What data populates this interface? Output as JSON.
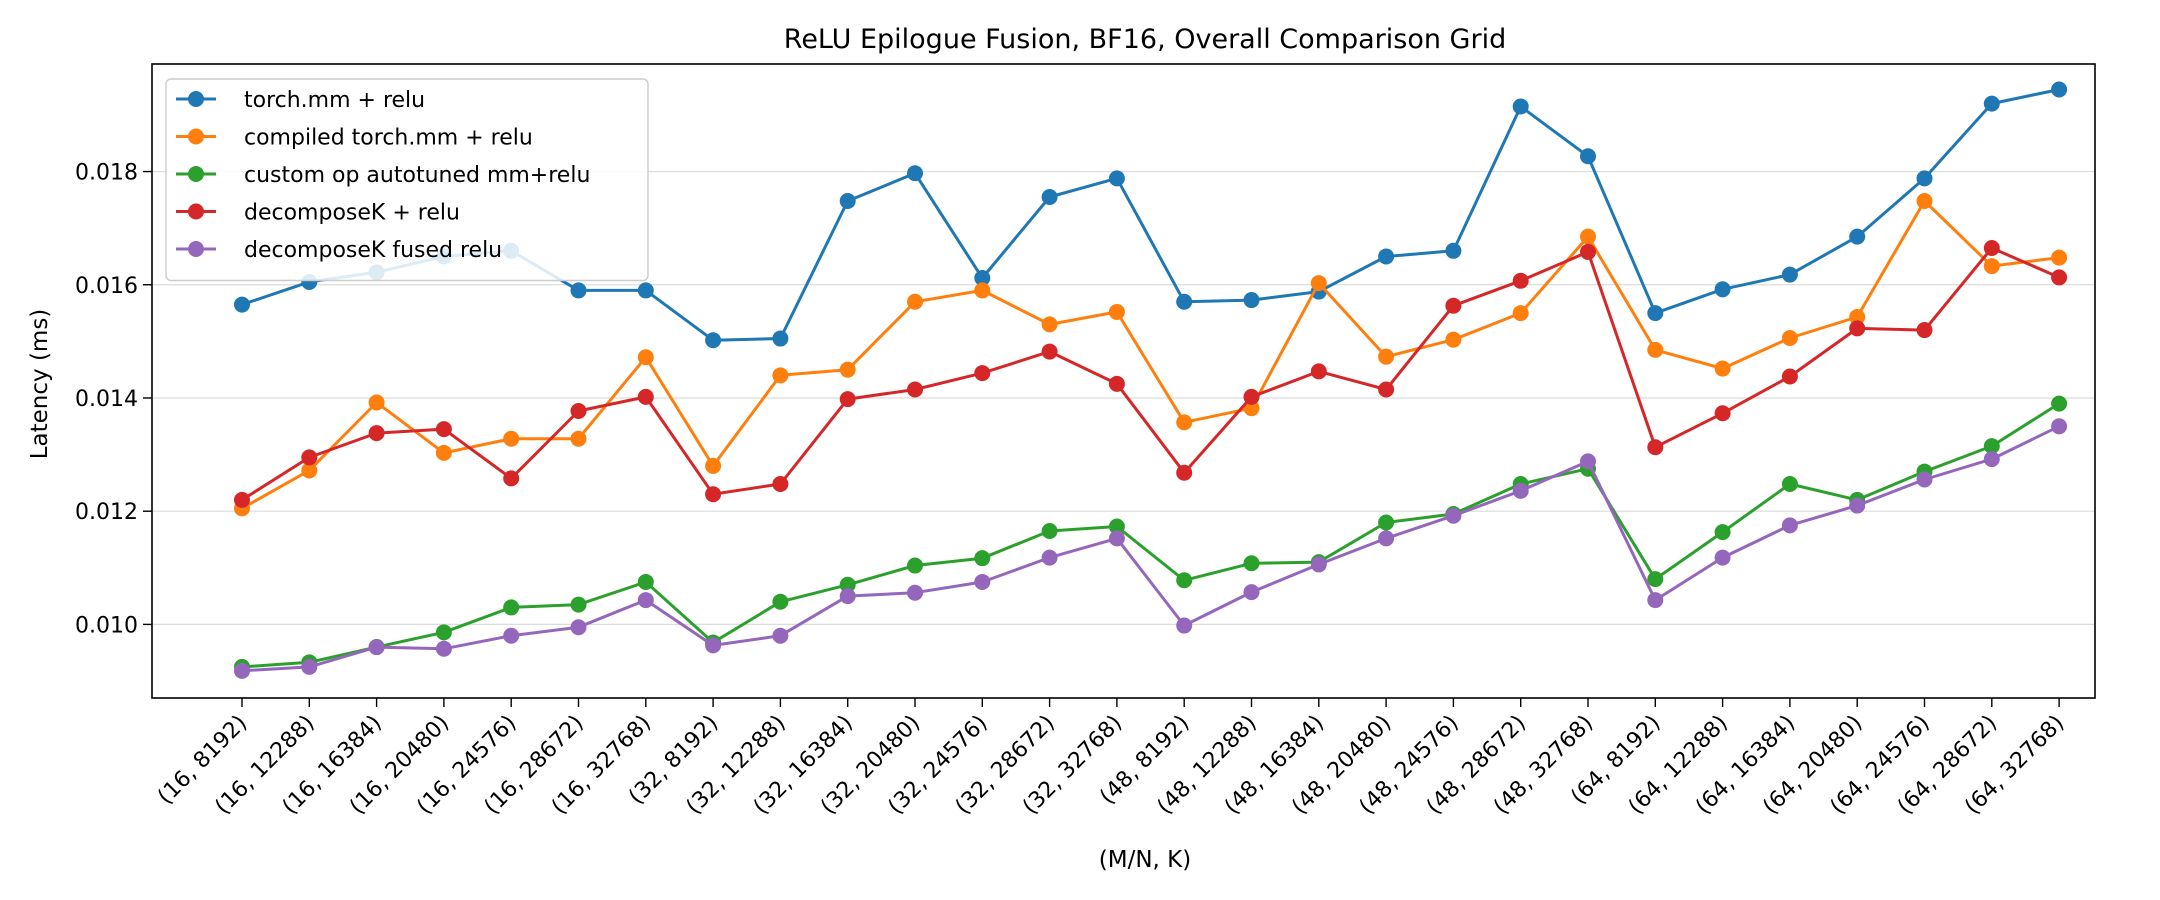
{
  "chart_data": {
    "type": "line",
    "title": "ReLU Epilogue Fusion, BF16, Overall Comparison Grid",
    "xlabel": "(M/N, K)",
    "ylabel": "Latency (ms)",
    "ylim": [
      0.0087,
      0.0199
    ],
    "yticks": [
      0.01,
      0.012,
      0.014,
      0.016,
      0.018
    ],
    "ytick_labels": [
      "0.010",
      "0.012",
      "0.014",
      "0.016",
      "0.018"
    ],
    "grid": "horizontal",
    "legend_position": "upper-left",
    "categories": [
      "(16, 8192)",
      "(16, 12288)",
      "(16, 16384)",
      "(16, 20480)",
      "(16, 24576)",
      "(16, 28672)",
      "(16, 32768)",
      "(32, 8192)",
      "(32, 12288)",
      "(32, 16384)",
      "(32, 20480)",
      "(32, 24576)",
      "(32, 28672)",
      "(32, 32768)",
      "(48, 8192)",
      "(48, 12288)",
      "(48, 16384)",
      "(48, 20480)",
      "(48, 24576)",
      "(48, 28672)",
      "(48, 32768)",
      "(64, 8192)",
      "(64, 12288)",
      "(64, 16384)",
      "(64, 20480)",
      "(64, 24576)",
      "(64, 28672)",
      "(64, 32768)"
    ],
    "series": [
      {
        "name": "torch.mm + relu",
        "color": "#1f77b4",
        "values": [
          0.01565,
          0.01605,
          0.01622,
          0.0165,
          0.0166,
          0.0159,
          0.0159,
          0.01502,
          0.01505,
          0.01748,
          0.01797,
          0.01612,
          0.01755,
          0.01788,
          0.0157,
          0.01573,
          0.01588,
          0.0165,
          0.0166,
          0.01915,
          0.01827,
          0.0155,
          0.01592,
          0.01618,
          0.01685,
          0.01788,
          0.0192,
          0.01945
        ]
      },
      {
        "name": "compiled torch.mm + relu",
        "color": "#ff7f0e",
        "values": [
          0.01205,
          0.01272,
          0.01392,
          0.01303,
          0.01328,
          0.01328,
          0.01472,
          0.0128,
          0.0144,
          0.0145,
          0.0157,
          0.0159,
          0.0153,
          0.01552,
          0.01357,
          0.01382,
          0.01603,
          0.01473,
          0.01503,
          0.0155,
          0.01685,
          0.01485,
          0.01452,
          0.01506,
          0.01543,
          0.01748,
          0.01633,
          0.01648
        ]
      },
      {
        "name": "custom op autotuned mm+relu",
        "color": "#2ca02c",
        "values": [
          0.00925,
          0.00933,
          0.0096,
          0.00986,
          0.0103,
          0.01035,
          0.01075,
          0.00968,
          0.0104,
          0.0107,
          0.01104,
          0.01117,
          0.01165,
          0.01173,
          0.01078,
          0.01108,
          0.0111,
          0.0118,
          0.01195,
          0.01248,
          0.01275,
          0.0108,
          0.01163,
          0.01248,
          0.0122,
          0.0127,
          0.01315,
          0.0139
        ]
      },
      {
        "name": "decomposeK + relu",
        "color": "#d62728",
        "values": [
          0.0122,
          0.01295,
          0.01338,
          0.01345,
          0.01258,
          0.01377,
          0.01402,
          0.0123,
          0.01248,
          0.01398,
          0.01415,
          0.01444,
          0.01482,
          0.01425,
          0.01268,
          0.01402,
          0.01447,
          0.01415,
          0.01563,
          0.01607,
          0.01658,
          0.01313,
          0.01373,
          0.01438,
          0.01523,
          0.0152,
          0.01665,
          0.01613
        ]
      },
      {
        "name": "decomposeK fused relu",
        "color": "#9467bd",
        "values": [
          0.00918,
          0.00925,
          0.0096,
          0.00957,
          0.0098,
          0.00995,
          0.01043,
          0.00963,
          0.0098,
          0.0105,
          0.01056,
          0.01075,
          0.01118,
          0.01152,
          0.00998,
          0.01057,
          0.01106,
          0.01152,
          0.01192,
          0.01236,
          0.01288,
          0.01043,
          0.01118,
          0.01175,
          0.0121,
          0.01256,
          0.01292,
          0.0135
        ]
      }
    ]
  }
}
